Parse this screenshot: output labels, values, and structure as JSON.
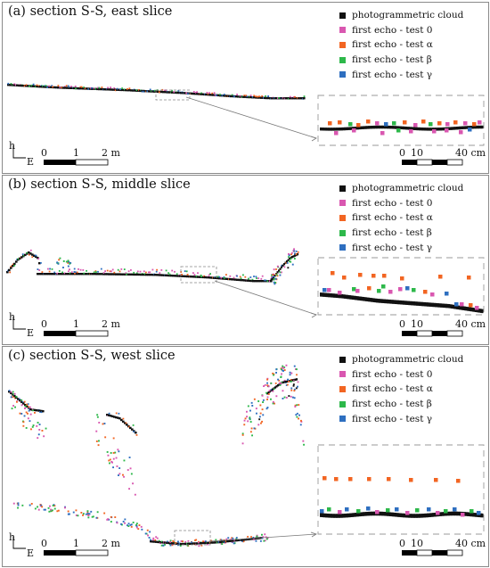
{
  "colors": {
    "photogrammetric": "#111111",
    "test0": "#d957b0",
    "testAlpha": "#f26522",
    "testBeta": "#2db84a",
    "testGamma": "#2e6fc0"
  },
  "legend": [
    {
      "label": "photogrammetric cloud",
      "color_key": "photogrammetric"
    },
    {
      "label": "first echo - test 0",
      "color_key": "test0"
    },
    {
      "label": "first echo - test α",
      "color_key": "testAlpha"
    },
    {
      "label": "first echo - test β",
      "color_key": "testBeta"
    },
    {
      "label": "first echo - test γ",
      "color_key": "testGamma"
    }
  ],
  "panels": [
    {
      "title": "(a) section S-S, east slice",
      "scale_main": {
        "tick0": "0",
        "tick1": "1",
        "tick2": "2 m"
      },
      "scale_inset": {
        "tick0": "0",
        "tick1": "10",
        "tick2": "40 cm"
      }
    },
    {
      "title": "(b) section S-S, middle slice",
      "scale_main": {
        "tick0": "0",
        "tick1": "1",
        "tick2": "2 m"
      },
      "scale_inset": {
        "tick0": "0",
        "tick1": "10",
        "tick2": "40 cm"
      }
    },
    {
      "title": "(c) section S-S, west slice",
      "scale_main": {
        "tick0": "0",
        "tick1": "1",
        "tick2": "2 m"
      },
      "scale_inset": {
        "tick0": "0",
        "tick1": "10",
        "tick2": "40 cm"
      }
    }
  ],
  "axes": {
    "h": "h",
    "e": "E"
  }
}
